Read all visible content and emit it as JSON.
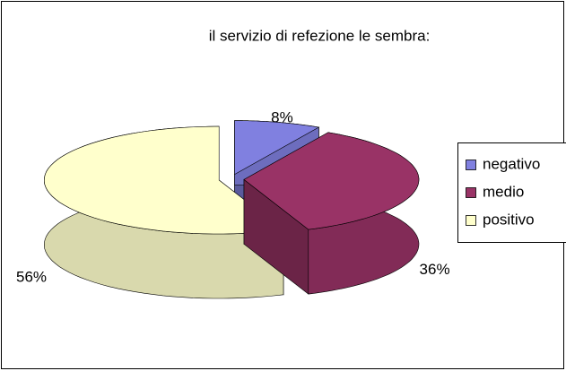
{
  "chart_data": {
    "type": "pie",
    "title": "il servizio di refezione le sembra:",
    "categories": [
      "negativo",
      "medio",
      "positivo"
    ],
    "values": [
      8,
      36,
      56
    ],
    "value_labels": [
      "8%",
      "36%",
      "56%"
    ],
    "colors": [
      "#8080e0",
      "#993366",
      "#ffffcc"
    ],
    "legend": "right"
  }
}
